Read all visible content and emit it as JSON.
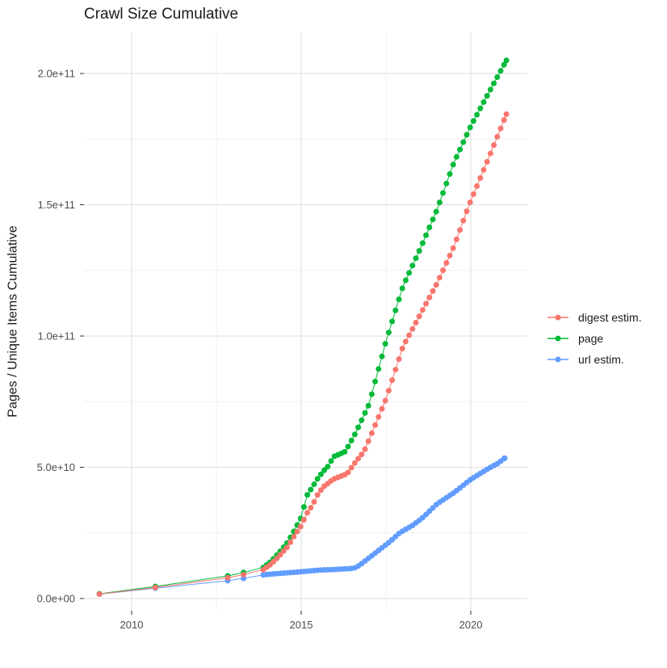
{
  "chart_data": {
    "type": "scatter",
    "title": "Crawl Size Cumulative",
    "xlabel": "",
    "ylabel": "Pages / Unique Items Cumulative",
    "x_axis": {
      "tick_values": [
        2010,
        2015,
        2020
      ],
      "tick_labels": [
        "2010",
        "2015",
        "2020"
      ],
      "minor_tick_values": [
        2012.5,
        2017.5
      ],
      "range": [
        2008.6,
        2021.7
      ]
    },
    "y_axis": {
      "tick_values_e9": [
        0,
        50,
        100,
        150,
        200
      ],
      "tick_labels": [
        "0.0e+00",
        "5.0e+10",
        "1.0e+11",
        "1.5e+11",
        "2.0e+11"
      ],
      "minor_tick_values_e9": [
        25,
        75,
        125,
        175
      ],
      "range_e9": [
        0,
        215
      ],
      "units": "values are pages / unique items, stored here in billions (1e9)"
    },
    "grid": "on",
    "legend": {
      "position": "right",
      "entries": [
        "digest estim.",
        "page",
        "url estim."
      ]
    },
    "style": {
      "background": "#ffffff",
      "major_grid_color": "#e3e3e3",
      "minor_grid_color": "#f0f0f0",
      "tick_text_color": "#4d4d4d",
      "title_text_color": "#1a1a1a",
      "point_radius_px": 3.5
    },
    "sampling_note": "Series are dense chains of dots (~monthly crawls). Values below are [year, value_in_1e9] anchor points read from the chart; dots between anchors from 2013.88 onward are linearly interpolated at 0.1-year spacing to recreate the dense chains.",
    "dense_from_year": 2013.88,
    "dense_step_years": 0.1,
    "series": [
      {
        "name": "digest estim.",
        "color": "#F8766D",
        "points_year_value_e9": [
          [
            2009.05,
            1.7
          ],
          [
            2010.7,
            4.2
          ],
          [
            2012.83,
            7.9
          ],
          [
            2013.3,
            9.1
          ],
          [
            2013.88,
            11.0
          ],
          [
            2014.1,
            13.0
          ],
          [
            2014.35,
            16.2
          ],
          [
            2014.6,
            19.8
          ],
          [
            2014.8,
            24.0
          ],
          [
            2015.0,
            27.8
          ],
          [
            2015.17,
            32.5
          ],
          [
            2015.33,
            35.5
          ],
          [
            2015.5,
            40.0
          ],
          [
            2015.65,
            42.5
          ],
          [
            2015.8,
            44.0
          ],
          [
            2015.95,
            45.5
          ],
          [
            2016.35,
            47.5
          ],
          [
            2016.6,
            52.0
          ],
          [
            2016.85,
            56.0
          ],
          [
            2017.0,
            60.5
          ],
          [
            2017.5,
            76.0
          ],
          [
            2018.0,
            96.0
          ],
          [
            2018.5,
            108.0
          ],
          [
            2019.0,
            120.0
          ],
          [
            2019.5,
            134.0
          ],
          [
            2019.95,
            150.0
          ],
          [
            2020.5,
            167.0
          ],
          [
            2021.05,
            184.5
          ]
        ]
      },
      {
        "name": "page",
        "color": "#00BA38",
        "points_year_value_e9": [
          [
            2009.05,
            1.8
          ],
          [
            2010.7,
            4.6
          ],
          [
            2012.83,
            8.6
          ],
          [
            2013.3,
            9.9
          ],
          [
            2013.88,
            11.8
          ],
          [
            2014.1,
            14.0
          ],
          [
            2014.35,
            17.5
          ],
          [
            2014.6,
            21.5
          ],
          [
            2014.8,
            26.0
          ],
          [
            2015.0,
            31.0
          ],
          [
            2015.17,
            39.3
          ],
          [
            2015.33,
            42.5
          ],
          [
            2015.5,
            46.0
          ],
          [
            2015.65,
            48.5
          ],
          [
            2015.8,
            50.5
          ],
          [
            2015.95,
            54.0
          ],
          [
            2016.3,
            56.0
          ],
          [
            2016.6,
            63.0
          ],
          [
            2017.0,
            74.0
          ],
          [
            2017.5,
            98.0
          ],
          [
            2018.0,
            119.0
          ],
          [
            2018.5,
            133.0
          ],
          [
            2019.0,
            148.0
          ],
          [
            2019.5,
            166.0
          ],
          [
            2020.0,
            180.0
          ],
          [
            2020.5,
            192.0
          ],
          [
            2021.05,
            205.0
          ]
        ]
      },
      {
        "name": "url estim.",
        "color": "#619CFF",
        "points_year_value_e9": [
          [
            2009.05,
            1.7
          ],
          [
            2010.7,
            3.9
          ],
          [
            2012.83,
            6.8
          ],
          [
            2013.3,
            7.7
          ],
          [
            2013.88,
            9.0
          ],
          [
            2014.2,
            9.4
          ],
          [
            2014.6,
            9.8
          ],
          [
            2015.0,
            10.2
          ],
          [
            2015.5,
            10.8
          ],
          [
            2016.0,
            11.1
          ],
          [
            2016.3,
            11.3
          ],
          [
            2016.55,
            11.5
          ],
          [
            2016.7,
            12.5
          ],
          [
            2017.0,
            15.5
          ],
          [
            2017.3,
            18.5
          ],
          [
            2017.6,
            21.5
          ],
          [
            2017.9,
            25.0
          ],
          [
            2018.3,
            28.0
          ],
          [
            2018.6,
            31.0
          ],
          [
            2019.0,
            36.0
          ],
          [
            2019.5,
            40.3
          ],
          [
            2020.0,
            45.4
          ],
          [
            2020.5,
            49.4
          ],
          [
            2020.8,
            51.5
          ],
          [
            2021.0,
            53.5
          ]
        ]
      }
    ]
  }
}
